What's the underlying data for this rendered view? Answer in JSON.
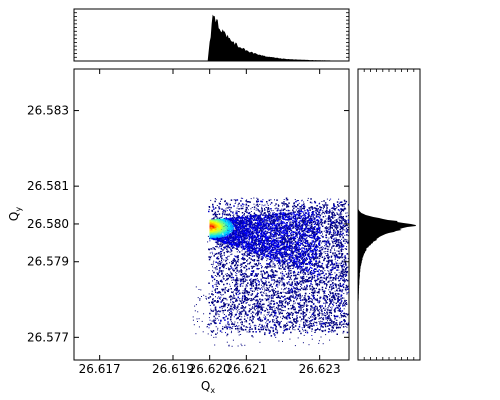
{
  "chart_data": {
    "type": "scatter",
    "title": "",
    "xlabel": "Q",
    "xlabel_sub": "x",
    "ylabel": "Q",
    "ylabel_sub": "y",
    "xlim": [
      26.6163,
      26.6238
    ],
    "ylim": [
      26.5764,
      26.5841
    ],
    "x_ticks": [
      "26.617",
      "26.619",
      "26.620",
      "26.621",
      "26.623"
    ],
    "x_tick_values": [
      26.617,
      26.619,
      26.62,
      26.621,
      26.623
    ],
    "y_ticks": [
      "26.583",
      "26.581",
      "26.580",
      "26.579",
      "26.577"
    ],
    "y_tick_values": [
      26.583,
      26.581,
      26.58,
      26.579,
      26.577
    ],
    "grid": false,
    "colormap": [
      "#00007f",
      "#0000ff",
      "#0080ff",
      "#00e0ff",
      "#7fff7f",
      "#ffff00",
      "#ff8000",
      "#ff0000"
    ],
    "peak": {
      "x": 26.62005,
      "y": 26.57995
    },
    "density_region": {
      "x_min": 26.6195,
      "x_max": 26.6238,
      "y_min": 26.5765,
      "y_max": 26.5807
    },
    "marginal_x": {
      "bin_width": 5e-05,
      "peak_x": 26.62012,
      "shape": "sharp rise at 26.6200, long tail to the right"
    },
    "marginal_y": {
      "bin_width": 5e-05,
      "peak_y": 26.57995,
      "shape": "peak near 26.5800, tail toward lower values"
    }
  }
}
